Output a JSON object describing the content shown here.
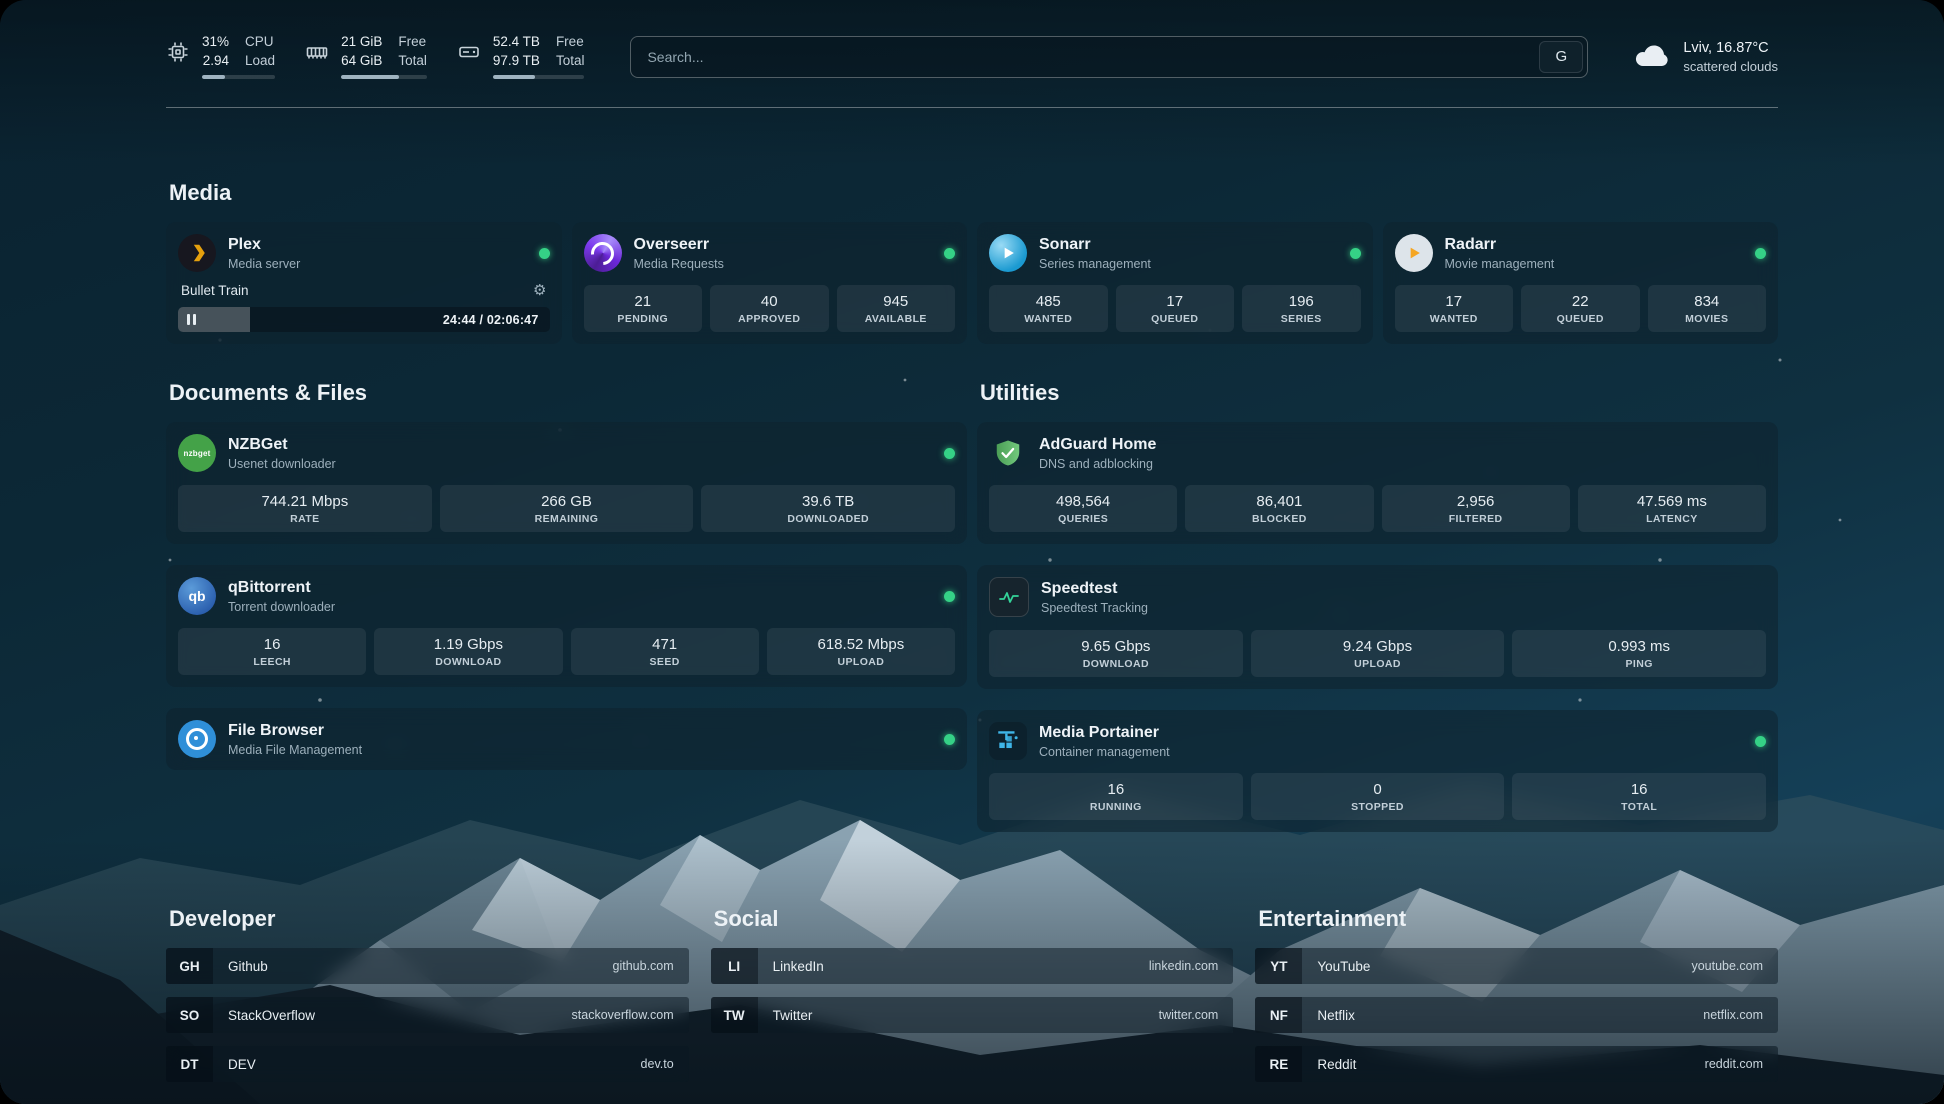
{
  "theme": {
    "background_top": "#0a2230",
    "background_bottom": "#16405a",
    "card_background": "rgba(14,34,45,0.55)",
    "status_online": "#35d186",
    "text_primary": "#eef3f7",
    "text_secondary": "#9db0bc"
  },
  "topbar": {
    "cpu": {
      "icon": "cpu-icon",
      "percent": "31%",
      "load": "2.94",
      "label_percent": "CPU",
      "label_load": "Load",
      "bar_percent": 31
    },
    "memory": {
      "icon": "memory-icon",
      "free": "21 GiB",
      "total": "64 GiB",
      "label_free": "Free",
      "label_total": "Total",
      "bar_percent": 67
    },
    "disk": {
      "icon": "disk-icon",
      "free": "52.4 TB",
      "total": "97.9 TB",
      "label_free": "Free",
      "label_total": "Total",
      "bar_percent": 46
    },
    "search": {
      "placeholder": "Search...",
      "button_label": "G"
    },
    "weather": {
      "icon": "cloud-icon",
      "location": "Lviv, 16.87°C",
      "condition": "scattered clouds"
    }
  },
  "media": {
    "heading": "Media",
    "plex": {
      "icon": "plex-icon",
      "title": "Plex",
      "subtitle": "Media server",
      "status": "online",
      "now_playing": "Bullet Train",
      "time": "24:44 / 02:06:47",
      "progress_percent": 19.5
    },
    "overseerr": {
      "icon": "overseerr-icon",
      "title": "Overseerr",
      "subtitle": "Media Requests",
      "status": "online",
      "stats": [
        {
          "value": "21",
          "label": "PENDING"
        },
        {
          "value": "40",
          "label": "APPROVED"
        },
        {
          "value": "945",
          "label": "AVAILABLE"
        }
      ]
    },
    "sonarr": {
      "icon": "sonarr-icon",
      "title": "Sonarr",
      "subtitle": "Series management",
      "status": "online",
      "stats": [
        {
          "value": "485",
          "label": "WANTED"
        },
        {
          "value": "17",
          "label": "QUEUED"
        },
        {
          "value": "196",
          "label": "SERIES"
        }
      ]
    },
    "radarr": {
      "icon": "radarr-icon",
      "title": "Radarr",
      "subtitle": "Movie management",
      "status": "online",
      "stats": [
        {
          "value": "17",
          "label": "WANTED"
        },
        {
          "value": "22",
          "label": "QUEUED"
        },
        {
          "value": "834",
          "label": "MOVIES"
        }
      ]
    }
  },
  "documents": {
    "heading": "Documents & Files",
    "nzbget": {
      "icon": "nzbget-icon",
      "title": "NZBGet",
      "subtitle": "Usenet downloader",
      "status": "online",
      "stats": [
        {
          "value": "744.21 Mbps",
          "label": "RATE"
        },
        {
          "value": "266 GB",
          "label": "REMAINING"
        },
        {
          "value": "39.6 TB",
          "label": "DOWNLOADED"
        }
      ]
    },
    "qbittorrent": {
      "icon": "qbittorrent-icon",
      "title": "qBittorrent",
      "subtitle": "Torrent downloader",
      "status": "online",
      "stats": [
        {
          "value": "16",
          "label": "LEECH"
        },
        {
          "value": "1.19 Gbps",
          "label": "DOWNLOAD"
        },
        {
          "value": "471",
          "label": "SEED"
        },
        {
          "value": "618.52 Mbps",
          "label": "UPLOAD"
        }
      ]
    },
    "filebrowser": {
      "icon": "filebrowser-icon",
      "title": "File Browser",
      "subtitle": "Media File Management",
      "status": "online"
    }
  },
  "utilities": {
    "heading": "Utilities",
    "adguard": {
      "icon": "adguard-icon",
      "title": "AdGuard Home",
      "subtitle": "DNS and adblocking",
      "status": "online",
      "stats": [
        {
          "value": "498,564",
          "label": "QUERIES"
        },
        {
          "value": "86,401",
          "label": "BLOCKED"
        },
        {
          "value": "2,956",
          "label": "FILTERED"
        },
        {
          "value": "47.569 ms",
          "label": "LATENCY"
        }
      ]
    },
    "speedtest": {
      "icon": "speedtest-icon",
      "title": "Speedtest",
      "subtitle": "Speedtest Tracking",
      "stats": [
        {
          "value": "9.65 Gbps",
          "label": "DOWNLOAD"
        },
        {
          "value": "9.24 Gbps",
          "label": "UPLOAD"
        },
        {
          "value": "0.993 ms",
          "label": "PING"
        }
      ]
    },
    "portainer": {
      "icon": "portainer-icon",
      "title": "Media Portainer",
      "subtitle": "Container management",
      "status": "online",
      "stats": [
        {
          "value": "16",
          "label": "RUNNING"
        },
        {
          "value": "0",
          "label": "STOPPED"
        },
        {
          "value": "16",
          "label": "TOTAL"
        }
      ]
    }
  },
  "bookmarks": {
    "developer": {
      "heading": "Developer",
      "items": [
        {
          "abbr": "GH",
          "name": "Github",
          "url": "github.com"
        },
        {
          "abbr": "SO",
          "name": "StackOverflow",
          "url": "stackoverflow.com"
        },
        {
          "abbr": "DT",
          "name": "DEV",
          "url": "dev.to"
        }
      ]
    },
    "social": {
      "heading": "Social",
      "items": [
        {
          "abbr": "LI",
          "name": "LinkedIn",
          "url": "linkedin.com"
        },
        {
          "abbr": "TW",
          "name": "Twitter",
          "url": "twitter.com"
        }
      ]
    },
    "entertainment": {
      "heading": "Entertainment",
      "items": [
        {
          "abbr": "YT",
          "name": "YouTube",
          "url": "youtube.com"
        },
        {
          "abbr": "NF",
          "name": "Netflix",
          "url": "netflix.com"
        },
        {
          "abbr": "RE",
          "name": "Reddit",
          "url": "reddit.com"
        }
      ]
    }
  }
}
